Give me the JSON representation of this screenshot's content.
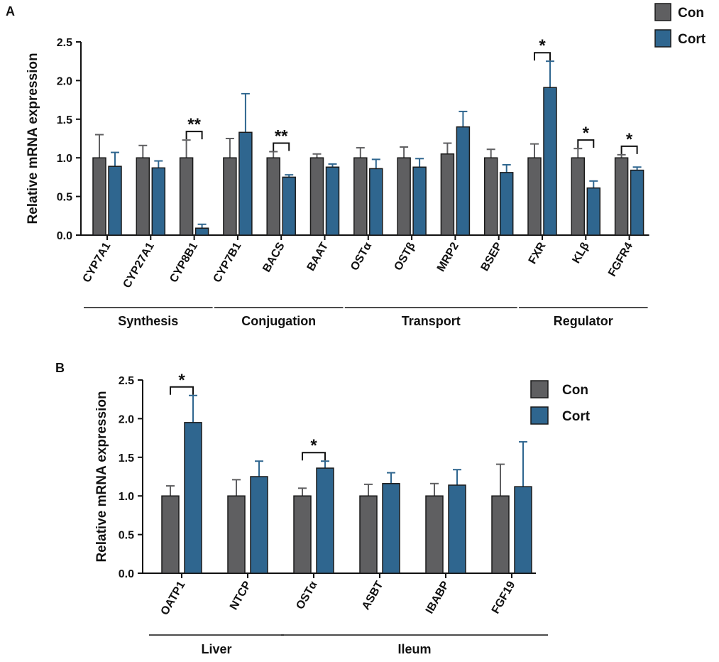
{
  "colors": {
    "con": "#5f5f61",
    "cort": "#2f668f"
  },
  "chart_data": [
    {
      "type": "bar",
      "panel": "A",
      "ylabel": "Relative mRNA expression",
      "ylim": [
        0,
        2.5
      ],
      "yticks": [
        "0.0",
        "0.5",
        "1.0",
        "1.5",
        "2.0",
        "2.5"
      ],
      "legend": {
        "position": "top-right",
        "entries": [
          "Con",
          "Cort"
        ]
      },
      "categories": [
        "CYP7A1",
        "CYP27A1",
        "CYP8B1",
        "CYP7B1",
        "BACS",
        "BAAT",
        "OSTα",
        "OSTβ",
        "MRP2",
        "BSEP",
        "FXR",
        "KLβ",
        "FGFR4"
      ],
      "series": [
        {
          "name": "Con",
          "values": [
            1.0,
            1.0,
            1.0,
            1.0,
            1.0,
            1.0,
            1.0,
            1.0,
            1.05,
            1.0,
            1.0,
            1.0,
            1.0
          ],
          "errors": [
            0.3,
            0.16,
            0.23,
            0.25,
            0.08,
            0.05,
            0.13,
            0.14,
            0.14,
            0.11,
            0.18,
            0.12,
            0.04
          ]
        },
        {
          "name": "Cort",
          "values": [
            0.89,
            0.87,
            0.09,
            1.33,
            0.75,
            0.88,
            0.86,
            0.88,
            1.4,
            0.81,
            1.91,
            0.61,
            0.84
          ],
          "errors": [
            0.18,
            0.09,
            0.05,
            0.5,
            0.03,
            0.04,
            0.12,
            0.11,
            0.2,
            0.1,
            0.34,
            0.09,
            0.04
          ]
        }
      ],
      "significance": [
        {
          "category": "CYP8B1",
          "label": "**"
        },
        {
          "category": "BACS",
          "label": "**"
        },
        {
          "category": "FXR",
          "label": "*"
        },
        {
          "category": "KLβ",
          "label": "*"
        },
        {
          "category": "FGFR4",
          "label": "*"
        }
      ],
      "groups": [
        {
          "label": "Synthesis",
          "from": "CYP7A1",
          "to": "CYP8B1"
        },
        {
          "label": "Conjugation",
          "from": "CYP7B1",
          "to": "BAAT"
        },
        {
          "label": "Transport",
          "from": "OSTα",
          "to": "BSEP"
        },
        {
          "label": "Regulator",
          "from": "FXR",
          "to": "FGFR4"
        }
      ]
    },
    {
      "type": "bar",
      "panel": "B",
      "ylabel": "Relative mRNA expression",
      "ylim": [
        0,
        2.5
      ],
      "yticks": [
        "0.0",
        "0.5",
        "1.0",
        "1.5",
        "2.0",
        "2.5"
      ],
      "legend": {
        "position": "top-right",
        "entries": [
          "Con",
          "Cort"
        ]
      },
      "categories": [
        "OATP1",
        "NTCP",
        "OSTα",
        "ASBT",
        "IBABP",
        "FGF19"
      ],
      "series": [
        {
          "name": "Con",
          "values": [
            1.0,
            1.0,
            1.0,
            1.0,
            1.0,
            1.0
          ],
          "errors": [
            0.13,
            0.21,
            0.1,
            0.15,
            0.16,
            0.41
          ]
        },
        {
          "name": "Cort",
          "values": [
            1.95,
            1.25,
            1.36,
            1.16,
            1.14,
            1.12
          ],
          "errors": [
            0.35,
            0.2,
            0.09,
            0.14,
            0.2,
            0.58
          ]
        }
      ],
      "significance": [
        {
          "category": "OATP1",
          "label": "*"
        },
        {
          "category": "OSTα",
          "label": "*"
        }
      ],
      "groups": [
        {
          "label": "Liver",
          "from": "OATP1",
          "to": "NTCP"
        },
        {
          "label": "Ileum",
          "from": "OSTα",
          "to": "FGF19"
        }
      ]
    }
  ]
}
